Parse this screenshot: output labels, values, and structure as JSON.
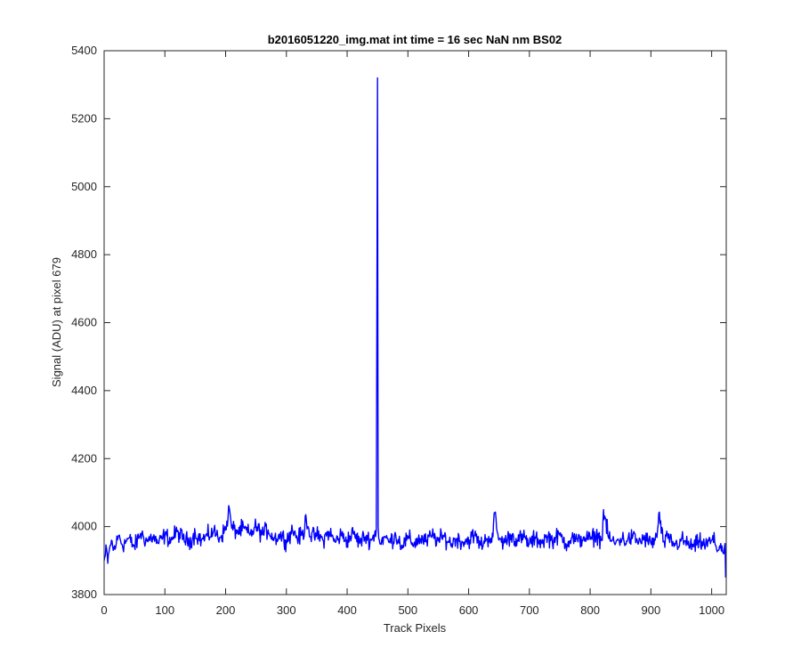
{
  "chart_data": {
    "type": "line",
    "title": "b2016051220_img.mat int time = 16 sec  NaN nm BS02",
    "xlabel": "Track Pixels",
    "ylabel": "Signal (ADU) at pixel 679",
    "xlim": [
      0,
      1024
    ],
    "ylim": [
      3800,
      5400
    ],
    "xticks": [
      0,
      100,
      200,
      300,
      400,
      500,
      600,
      700,
      800,
      900,
      1000
    ],
    "yticks": [
      3800,
      4000,
      4200,
      4400,
      4600,
      4800,
      5000,
      5200,
      5400
    ],
    "grid": false,
    "legend": "none",
    "series": [
      {
        "color": "#0000ff",
        "baseline": 3965,
        "noise_amplitude": 25,
        "n_points": 1024,
        "x": [
          0,
          2,
          4,
          6,
          8,
          10,
          12,
          15,
          20,
          25,
          30,
          40,
          50,
          60,
          70,
          80,
          90,
          100,
          110,
          120,
          130,
          140,
          150,
          160,
          170,
          180,
          190,
          200,
          206,
          210,
          220,
          230,
          240,
          250,
          260,
          270,
          280,
          290,
          300,
          310,
          320,
          330,
          332,
          340,
          350,
          360,
          370,
          380,
          390,
          400,
          410,
          420,
          430,
          440,
          445,
          448,
          450,
          451,
          452,
          455,
          460,
          470,
          480,
          490,
          500,
          510,
          520,
          530,
          540,
          550,
          560,
          570,
          580,
          590,
          600,
          610,
          620,
          630,
          640,
          642,
          650,
          660,
          670,
          680,
          690,
          700,
          710,
          720,
          730,
          740,
          750,
          760,
          770,
          780,
          790,
          800,
          810,
          820,
          822,
          830,
          840,
          850,
          860,
          870,
          880,
          890,
          900,
          910,
          913,
          920,
          930,
          940,
          950,
          960,
          970,
          980,
          990,
          1000,
          1005,
          1010,
          1015,
          1020,
          1022,
          1023
        ],
        "y": [
          3900,
          3915,
          3935,
          3892,
          3925,
          3945,
          3960,
          3930,
          3950,
          3975,
          3945,
          3965,
          3940,
          3980,
          3958,
          3970,
          3950,
          3975,
          3960,
          3985,
          3965,
          3955,
          3980,
          3960,
          3972,
          3985,
          3968,
          3990,
          4055,
          3995,
          3985,
          3995,
          3975,
          4000,
          3978,
          3990,
          3965,
          3975,
          3960,
          3990,
          3965,
          3985,
          4035,
          3970,
          3975,
          3960,
          3985,
          3955,
          3975,
          3960,
          3980,
          3955,
          3970,
          3960,
          3975,
          3990,
          5320,
          4000,
          3965,
          3950,
          3970,
          3955,
          3975,
          3945,
          3965,
          3950,
          3965,
          3955,
          3975,
          3958,
          3970,
          3950,
          3965,
          3955,
          3960,
          3975,
          3945,
          3965,
          3970,
          4040,
          3960,
          3955,
          3975,
          3960,
          3968,
          3950,
          3965,
          3955,
          3970,
          3960,
          3975,
          3950,
          3968,
          3955,
          3970,
          3962,
          3975,
          3960,
          4050,
          3968,
          3950,
          3965,
          3958,
          3970,
          3955,
          3965,
          3950,
          3968,
          4040,
          3955,
          3965,
          3945,
          3960,
          3950,
          3940,
          3955,
          3945,
          3960,
          3955,
          3930,
          3950,
          3920,
          3950,
          3850
        ]
      }
    ]
  }
}
